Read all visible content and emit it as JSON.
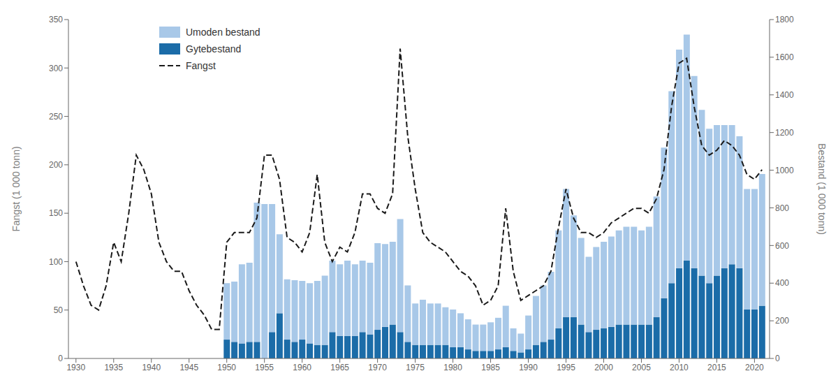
{
  "chart_data": {
    "type": "bar",
    "stacked": true,
    "legend": "upper left",
    "grid": false,
    "x": [
      1930,
      1931,
      1932,
      1933,
      1934,
      1935,
      1936,
      1937,
      1938,
      1939,
      1940,
      1941,
      1942,
      1943,
      1944,
      1945,
      1946,
      1947,
      1948,
      1949,
      1950,
      1951,
      1952,
      1953,
      1954,
      1955,
      1956,
      1957,
      1958,
      1959,
      1960,
      1961,
      1962,
      1963,
      1964,
      1965,
      1966,
      1967,
      1968,
      1969,
      1970,
      1971,
      1972,
      1973,
      1974,
      1975,
      1976,
      1977,
      1978,
      1979,
      1980,
      1981,
      1982,
      1983,
      1984,
      1985,
      1986,
      1987,
      1988,
      1989,
      1990,
      1991,
      1992,
      1993,
      1994,
      1995,
      1996,
      1997,
      1998,
      1999,
      2000,
      2001,
      2002,
      2003,
      2004,
      2005,
      2006,
      2007,
      2008,
      2009,
      2010,
      2011,
      2012,
      2013,
      2014,
      2015,
      2016,
      2017,
      2018,
      2019,
      2020,
      2021
    ],
    "xlim": [
      1929,
      2022
    ],
    "xticks": [
      1930,
      1935,
      1940,
      1945,
      1950,
      1955,
      1960,
      1965,
      1970,
      1975,
      1980,
      1985,
      1990,
      1995,
      2000,
      2005,
      2010,
      2015,
      2020
    ],
    "ylabel": "Fangst (1 000 tonn)",
    "ylim": [
      0,
      350
    ],
    "yticks": [
      0,
      50,
      100,
      150,
      200,
      250,
      300,
      350
    ],
    "y2label": "Bestand (1 000 tonn)",
    "y2lim": [
      0,
      1800
    ],
    "y2ticks": [
      0,
      200,
      400,
      600,
      800,
      1000,
      1200,
      1400,
      1600,
      1800
    ],
    "series": [
      {
        "name": "Umoden bestand",
        "type": "bar",
        "axis": "y2",
        "color": "#a8c8e8",
        "values": [
          null,
          null,
          null,
          null,
          null,
          null,
          null,
          null,
          null,
          null,
          null,
          null,
          null,
          null,
          null,
          null,
          null,
          null,
          null,
          null,
          300,
          320,
          420,
          420,
          740,
          820,
          680,
          420,
          320,
          328,
          312,
          320,
          340,
          368,
          380,
          380,
          400,
          380,
          380,
          380,
          460,
          440,
          440,
          600,
          300,
          220,
          240,
          220,
          220,
          200,
          200,
          180,
          160,
          140,
          140,
          152,
          168,
          220,
          120,
          100,
          180,
          260,
          300,
          360,
          520,
          680,
          540,
          460,
          400,
          440,
          460,
          480,
          500,
          520,
          520,
          500,
          520,
          640,
          800,
          1020,
          1160,
          1200,
          1020,
          880,
          820,
          800,
          760,
          740,
          700,
          640,
          640,
          700
        ]
      },
      {
        "name": "Gytebestand",
        "type": "bar",
        "axis": "y2",
        "color": "#1b6ca8",
        "values": [
          null,
          null,
          null,
          null,
          null,
          null,
          null,
          null,
          null,
          null,
          null,
          null,
          null,
          null,
          null,
          null,
          null,
          null,
          null,
          null,
          100,
          88,
          80,
          88,
          88,
          0,
          140,
          240,
          100,
          88,
          100,
          80,
          72,
          72,
          140,
          120,
          120,
          120,
          140,
          128,
          152,
          168,
          180,
          140,
          88,
          72,
          72,
          72,
          72,
          72,
          60,
          60,
          48,
          40,
          40,
          40,
          48,
          60,
          40,
          32,
          48,
          72,
          88,
          100,
          160,
          220,
          220,
          180,
          140,
          152,
          160,
          168,
          180,
          180,
          180,
          180,
          180,
          220,
          320,
          400,
          480,
          520,
          480,
          440,
          400,
          440,
          480,
          500,
          480,
          260,
          260,
          280
        ]
      },
      {
        "name": "Fangst",
        "type": "line",
        "line_style": "dashed",
        "color": "#1a1a1a",
        "values": [
          100,
          75,
          55,
          50,
          75,
          120,
          100,
          150,
          210,
          195,
          170,
          120,
          100,
          90,
          90,
          70,
          55,
          45,
          30,
          30,
          120,
          130,
          130,
          130,
          145,
          210,
          210,
          185,
          125,
          120,
          110,
          130,
          190,
          120,
          100,
          115,
          110,
          130,
          170,
          170,
          155,
          150,
          170,
          320,
          230,
          175,
          130,
          120,
          115,
          110,
          100,
          90,
          85,
          75,
          55,
          60,
          75,
          155,
          90,
          60,
          65,
          70,
          75,
          90,
          135,
          175,
          145,
          130,
          130,
          125,
          130,
          140,
          145,
          150,
          155,
          155,
          150,
          165,
          195,
          260,
          305,
          310,
          260,
          220,
          210,
          215,
          225,
          220,
          210,
          190,
          185,
          195
        ]
      }
    ]
  }
}
